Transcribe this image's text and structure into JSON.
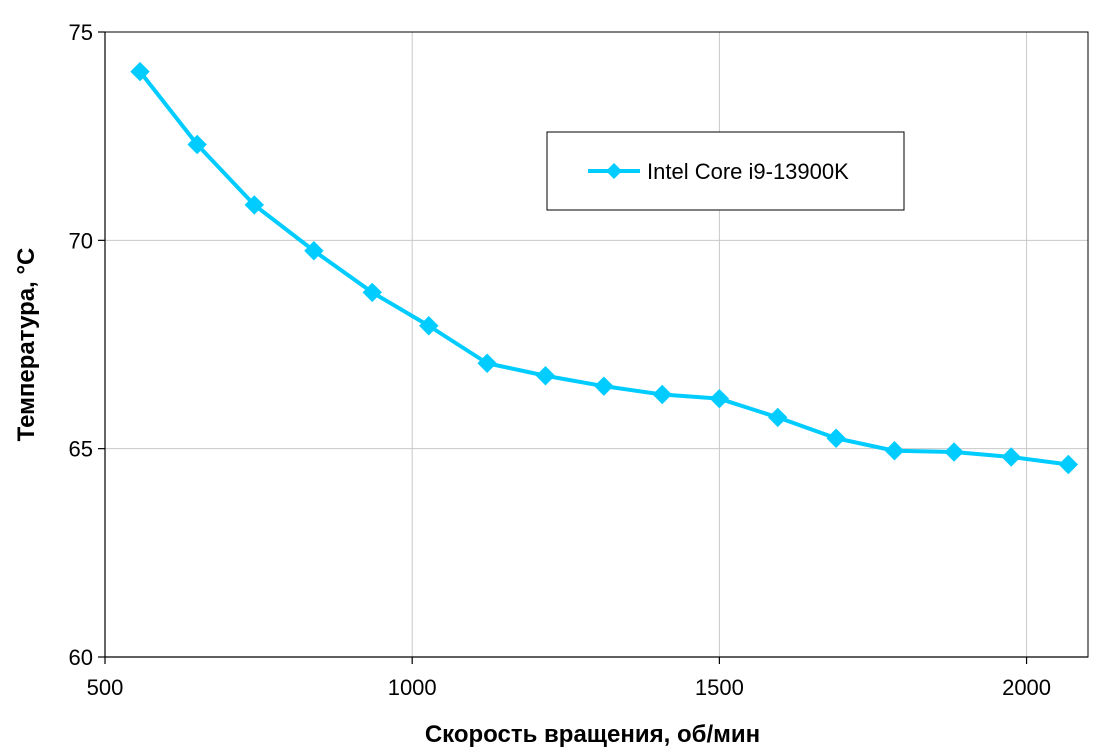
{
  "chart_data": {
    "type": "line",
    "xlabel": "Скорость вращения, об/мин",
    "ylabel": "Температура, °C",
    "xlim": [
      500,
      2100
    ],
    "ylim": [
      60,
      75
    ],
    "xticks": [
      500,
      1000,
      1500,
      2000
    ],
    "yticks": [
      60,
      65,
      70,
      75
    ],
    "grid": true,
    "legend_position": "upper-center-right",
    "series": [
      {
        "name": "Intel Core i9-13900K",
        "color": "#00ccff",
        "marker": "diamond",
        "points": [
          {
            "x": 557,
            "y": 74.05
          },
          {
            "x": 650,
            "y": 72.3
          },
          {
            "x": 743,
            "y": 70.85
          },
          {
            "x": 840,
            "y": 69.75
          },
          {
            "x": 935,
            "y": 68.75
          },
          {
            "x": 1027,
            "y": 67.95
          },
          {
            "x": 1122,
            "y": 67.05
          },
          {
            "x": 1217,
            "y": 66.75
          },
          {
            "x": 1312,
            "y": 66.5
          },
          {
            "x": 1407,
            "y": 66.3
          },
          {
            "x": 1500,
            "y": 66.2
          },
          {
            "x": 1595,
            "y": 65.75
          },
          {
            "x": 1690,
            "y": 65.25
          },
          {
            "x": 1785,
            "y": 64.95
          },
          {
            "x": 1882,
            "y": 64.92
          },
          {
            "x": 1975,
            "y": 64.8
          },
          {
            "x": 2068,
            "y": 64.62
          }
        ]
      }
    ]
  }
}
